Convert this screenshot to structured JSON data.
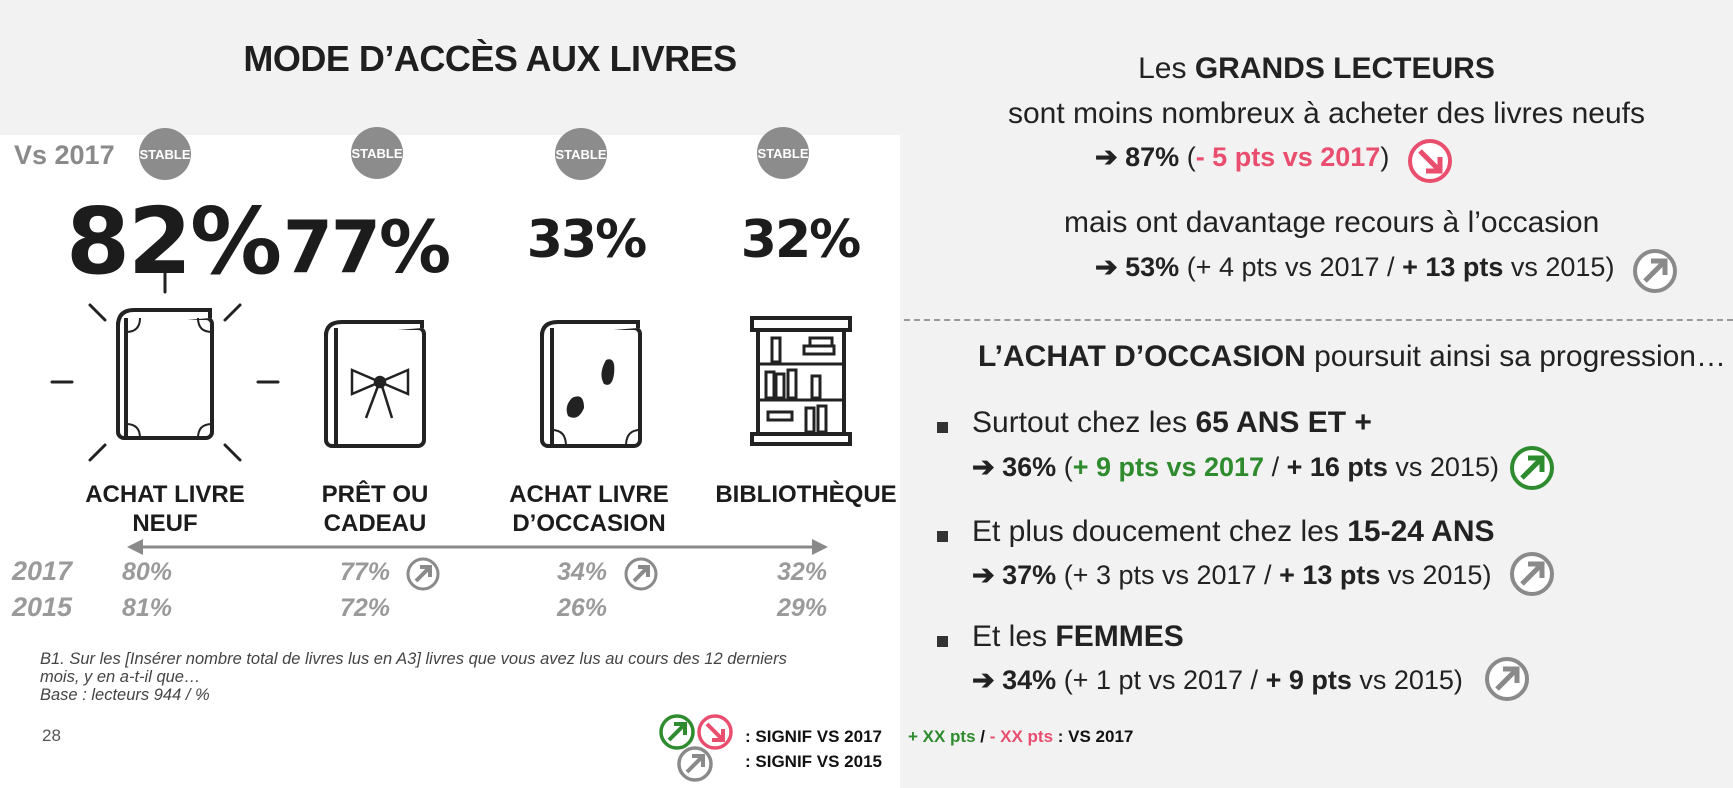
{
  "title": "MODE D’ACCÈS AUX LIVRES",
  "vs_label": "Vs 2017",
  "categories": [
    {
      "badge": "STABLE",
      "pct": "82%",
      "label_line1": "ACHAT LIVRE",
      "label_line2": "NEUF",
      "v2017": "80%",
      "v2015": "81%"
    },
    {
      "badge": "STABLE",
      "pct": "77%",
      "label_line1": "PRÊT OU",
      "label_line2": "CADEAU",
      "v2017": "77%",
      "v2015": "72%"
    },
    {
      "badge": "STABLE",
      "pct": "33%",
      "label_line1": "ACHAT LIVRE",
      "label_line2": "D’OCCASION",
      "v2017": "34%",
      "v2015": "26%"
    },
    {
      "badge": "STABLE",
      "pct": "32%",
      "label_line1": "BIBLIOTHÈQUE",
      "label_line2": "",
      "v2017": "32%",
      "v2015": "29%"
    }
  ],
  "year_2017": "2017",
  "year_2015": "2015",
  "note_line1": "B1. Sur les [Insérer nombre total de livres lus en A3] livres que vous avez lus au cours des 12 derniers",
  "note_line2": "mois, y en a-t-il que…",
  "note_line3": "Base : lecteurs 944 / %",
  "page_number": "28",
  "right": {
    "h1_pre": "Les ",
    "h1_bold": "GRANDS LECTEURS",
    "h1_line2": "sont moins nombreux à acheter des livres neufs",
    "s1_pct": "87%",
    "s1_open": " (",
    "s1_red": "- 5 pts vs 2017",
    "s1_close": ")",
    "h2": "mais ont davantage recours à l’occasion",
    "s2_pct": "53%",
    "s2_a": " (+ 4 pts vs 2017 / ",
    "s2_b": "+ 13 pts",
    "s2_c": " vs 2015)",
    "h3_bold": "L’ACHAT D’OCCASION",
    "h3_rest": " poursuit ainsi sa progression…",
    "b1_pre": "Surtout chez les ",
    "b1_bold": "65 ANS ET +",
    "b1_pct": "36%",
    "b1_open": " (",
    "b1_green": "+ 9 pts vs 2017",
    "b1_mid": " / ",
    "b1_bold2": "+ 16 pts",
    "b1_end": " vs 2015)",
    "b2_pre": "Et plus doucement chez les ",
    "b2_bold": "15-24 ANS",
    "b2_pct": "37%",
    "b2_a": " (+ 3 pts vs 2017 / ",
    "b2_b": "+ 13 pts",
    "b2_c": " vs 2015)",
    "b3_pre": "Et les ",
    "b3_bold": "FEMMES",
    "b3_pct": "34%",
    "b3_a": " (+ 1 pt vs 2017 / ",
    "b3_b": "+ 9 pts",
    "b3_c": " vs 2015)"
  },
  "legend": {
    "signif_2017": ": SIGNIF VS 2017",
    "signif_2015": ": SIGNIF VS 2015",
    "plus": "+ XX pts",
    "slash": " / ",
    "minus": "- XX pts",
    "vs": " : VS 2017"
  },
  "colors": {
    "red": "#e94e6e",
    "green": "#2e8b2e",
    "grey": "#8c8c8c"
  }
}
